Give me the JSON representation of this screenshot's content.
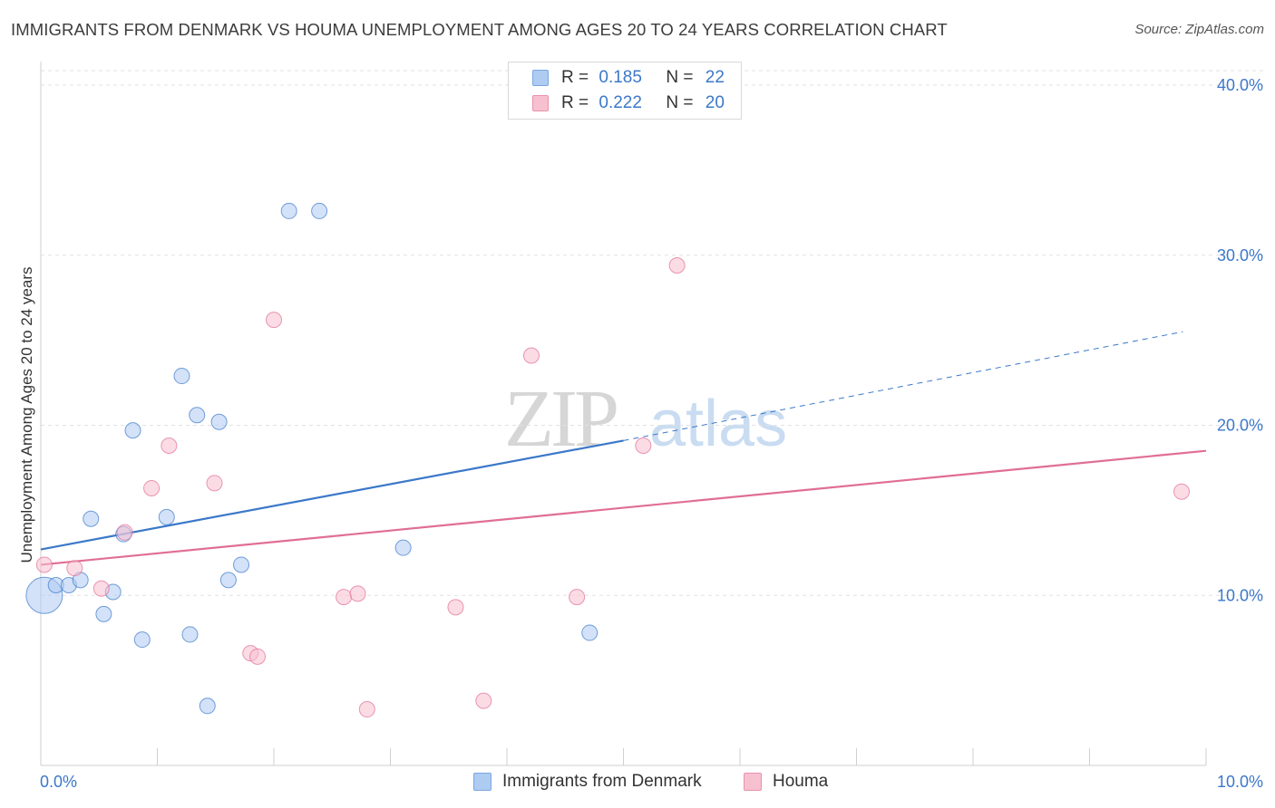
{
  "title": "IMMIGRANTS FROM DENMARK VS HOUMA UNEMPLOYMENT AMONG AGES 20 TO 24 YEARS CORRELATION CHART",
  "source": "Source: ZipAtlas.com",
  "watermark": {
    "zip": "ZIP",
    "atlas": "atlas"
  },
  "legend_top": {
    "rows": [
      {
        "r_label": "R =",
        "r_value": "0.185",
        "n_label": "N =",
        "n_value": "22",
        "color": "#aecbf2",
        "border": "#7aa6df"
      },
      {
        "r_label": "R =",
        "r_value": "0.222",
        "n_label": "N =",
        "n_value": "20",
        "color": "#f7c0d0",
        "border": "#e891ab"
      }
    ]
  },
  "legend_bottom": {
    "items": [
      {
        "label": "Immigrants from Denmark",
        "color": "#aecbf2",
        "border": "#7aa6df"
      },
      {
        "label": "Houma",
        "color": "#f7c0d0",
        "border": "#e891ab"
      }
    ]
  },
  "chart_data": {
    "type": "scatter",
    "title": "IMMIGRANTS FROM DENMARK VS HOUMA UNEMPLOYMENT AMONG AGES 20 TO 24 YEARS CORRELATION CHART",
    "xlabel": "",
    "ylabel": "Unemployment Among Ages 20 to 24 years",
    "xlim": [
      0,
      10
    ],
    "ylim": [
      0,
      40
    ],
    "x_tick_labels": [
      "0.0%",
      "10.0%"
    ],
    "y_ticks": [
      10,
      20,
      30,
      40
    ],
    "y_tick_labels": [
      "10.0%",
      "20.0%",
      "30.0%",
      "40.0%"
    ],
    "grid": "horizontal dashed",
    "series": [
      {
        "name": "Immigrants from Denmark",
        "color": "#3b78c9",
        "fill": "#aecbf2",
        "points": [
          {
            "x": 0.03,
            "y": 10.0,
            "big": true
          },
          {
            "x": 0.13,
            "y": 10.6
          },
          {
            "x": 0.24,
            "y": 10.6
          },
          {
            "x": 0.34,
            "y": 10.9
          },
          {
            "x": 0.43,
            "y": 14.5
          },
          {
            "x": 0.54,
            "y": 8.9
          },
          {
            "x": 0.62,
            "y": 10.2
          },
          {
            "x": 0.71,
            "y": 13.6
          },
          {
            "x": 0.79,
            "y": 19.7
          },
          {
            "x": 0.87,
            "y": 7.4
          },
          {
            "x": 1.08,
            "y": 14.6
          },
          {
            "x": 1.21,
            "y": 22.9
          },
          {
            "x": 1.28,
            "y": 7.7
          },
          {
            "x": 1.34,
            "y": 20.6
          },
          {
            "x": 1.43,
            "y": 3.5
          },
          {
            "x": 1.53,
            "y": 20.2
          },
          {
            "x": 1.61,
            "y": 10.9
          },
          {
            "x": 1.72,
            "y": 11.8
          },
          {
            "x": 2.13,
            "y": 32.6
          },
          {
            "x": 2.39,
            "y": 32.6
          },
          {
            "x": 3.11,
            "y": 12.8
          },
          {
            "x": 4.71,
            "y": 7.8
          }
        ],
        "trend": {
          "x0": 0,
          "y0": 12.7,
          "x1": 5.0,
          "y1": 19.1,
          "dash_to_x": 9.8,
          "dash_to_y": 25.5
        }
      },
      {
        "name": "Houma",
        "color": "#e06e95",
        "fill": "#f7c0d0",
        "points": [
          {
            "x": 0.03,
            "y": 11.8
          },
          {
            "x": 0.29,
            "y": 11.6
          },
          {
            "x": 0.52,
            "y": 10.4
          },
          {
            "x": 0.72,
            "y": 13.7
          },
          {
            "x": 0.95,
            "y": 16.3
          },
          {
            "x": 1.1,
            "y": 18.8
          },
          {
            "x": 1.49,
            "y": 16.6
          },
          {
            "x": 1.8,
            "y": 6.6
          },
          {
            "x": 1.86,
            "y": 6.4
          },
          {
            "x": 2.0,
            "y": 26.2
          },
          {
            "x": 2.6,
            "y": 9.9
          },
          {
            "x": 2.72,
            "y": 10.1
          },
          {
            "x": 2.8,
            "y": 3.3
          },
          {
            "x": 3.56,
            "y": 9.3
          },
          {
            "x": 3.8,
            "y": 3.8
          },
          {
            "x": 4.21,
            "y": 24.1
          },
          {
            "x": 4.6,
            "y": 9.9
          },
          {
            "x": 5.17,
            "y": 18.8
          },
          {
            "x": 5.46,
            "y": 29.4
          },
          {
            "x": 9.79,
            "y": 16.1
          }
        ],
        "trend": {
          "x0": 0,
          "y0": 11.8,
          "x1": 10.0,
          "y1": 18.5
        }
      }
    ]
  }
}
